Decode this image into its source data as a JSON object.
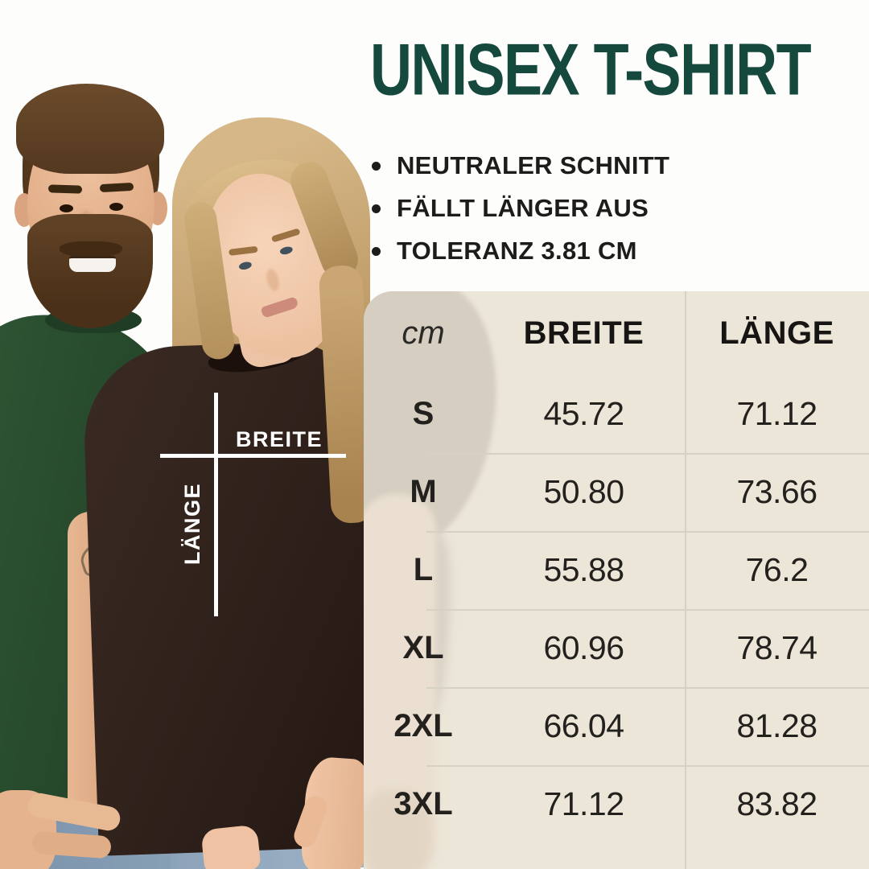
{
  "title": "UNISEX T-SHIRT",
  "features": [
    {
      "label": "NEUTRALER SCHNITT"
    },
    {
      "label": "FÄLLT LÄNGER AUS"
    },
    {
      "label": "TOLERANZ 3.81 CM"
    }
  ],
  "shirt_diagram": {
    "width_label": "BREITE",
    "length_label": "LÄNGE"
  },
  "table": {
    "unit_label": "cm",
    "columns": {
      "breite": "BREITE",
      "laenge": "LÄNGE"
    },
    "rows": [
      {
        "size": "S",
        "breite": "45.72",
        "laenge": "71.12"
      },
      {
        "size": "M",
        "breite": "50.80",
        "laenge": "73.66"
      },
      {
        "size": "L",
        "breite": "55.88",
        "laenge": "76.2"
      },
      {
        "size": "XL",
        "breite": "60.96",
        "laenge": "78.74"
      },
      {
        "size": "2XL",
        "breite": "66.04",
        "laenge": "81.28"
      },
      {
        "size": "3XL",
        "breite": "71.12",
        "laenge": "83.82"
      }
    ]
  },
  "chart_data": {
    "type": "table",
    "title": "UNISEX T-SHIRT",
    "unit": "cm",
    "columns": [
      "BREITE",
      "LÄNGE"
    ],
    "rows": [
      {
        "size": "S",
        "breite": 45.72,
        "laenge": 71.12
      },
      {
        "size": "M",
        "breite": 50.8,
        "laenge": 73.66
      },
      {
        "size": "L",
        "breite": 55.88,
        "laenge": 76.2
      },
      {
        "size": "XL",
        "breite": 60.96,
        "laenge": 78.74
      },
      {
        "size": "2XL",
        "breite": 66.04,
        "laenge": 81.28
      },
      {
        "size": "3XL",
        "breite": 71.12,
        "laenge": 83.82
      }
    ],
    "tolerance_cm": 3.81
  },
  "colors": {
    "title_green": "#15493d",
    "text_black": "#1d1c1a",
    "panel_beige": "#ece6d8",
    "divider": "#d7d1c4",
    "shirt_green": "#27492c",
    "shirt_brown": "#31221c",
    "diagram_line": "#ffffff"
  }
}
